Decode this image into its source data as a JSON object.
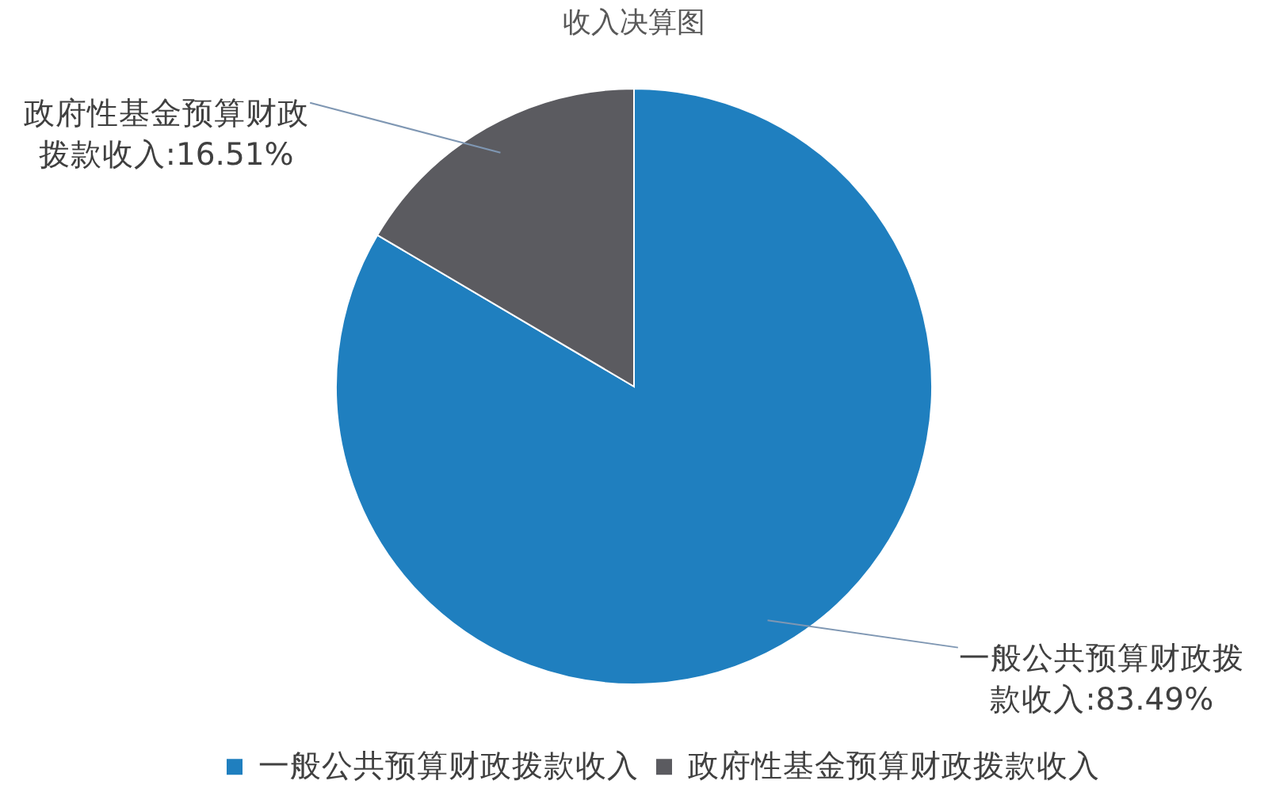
{
  "chart_data": {
    "type": "pie",
    "title": "收入决算图",
    "categories": [
      "一般公共预算财政拨款收入",
      "政府性基金预算财政拨款收入"
    ],
    "values": [
      83.49,
      16.51
    ],
    "colors": [
      "#1f7fbf",
      "#5b5b60"
    ],
    "value_labels": [
      "一般公共预算财政拨款收入:83.49%",
      "政府性基金预算财政拨款收入:16.51%"
    ],
    "legend": "bottom"
  }
}
